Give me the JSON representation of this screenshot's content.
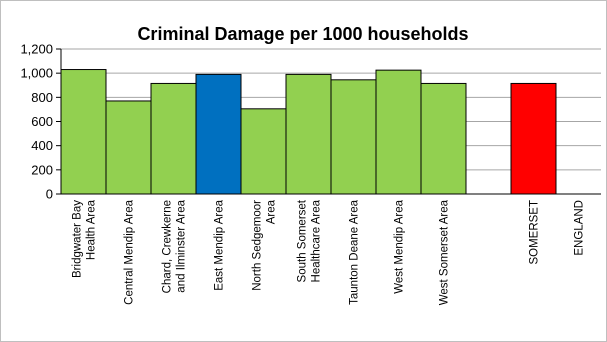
{
  "chart_data": {
    "type": "bar",
    "title": "Criminal Damage per 1000 households",
    "xlabel": "",
    "ylabel": "",
    "ylim": [
      0,
      1200
    ],
    "yticks": [
      "0",
      "200",
      "400",
      "600",
      "800",
      "1,000",
      "1,200"
    ],
    "grid": true,
    "legend": "none",
    "categories": [
      [
        "Bridgwater Bay",
        "Health Area"
      ],
      [
        "Central Mendip Area"
      ],
      [
        "Chard, Crewkerne",
        "and Ilminster Area"
      ],
      [
        "East Mendip Area"
      ],
      [
        "North Sedgemoor",
        "Area"
      ],
      [
        "South Somerset",
        "Healthcare Area"
      ],
      [
        "Taunton Deane Area"
      ],
      [
        "West Mendip Area"
      ],
      [
        "West Somerset Area"
      ],
      [],
      [
        "SOMERSET"
      ],
      [
        "ENGLAND"
      ]
    ],
    "values": [
      1030,
      770,
      915,
      990,
      705,
      990,
      945,
      1025,
      915,
      null,
      915,
      null
    ],
    "colors": [
      "#92d050",
      "#92d050",
      "#92d050",
      "#0070c0",
      "#92d050",
      "#92d050",
      "#92d050",
      "#92d050",
      "#92d050",
      null,
      "#ff0000",
      null
    ],
    "series": [
      {
        "values": [
          1030,
          770,
          915,
          990,
          705,
          990,
          945,
          1025,
          915,
          null,
          915,
          null
        ]
      }
    ]
  }
}
